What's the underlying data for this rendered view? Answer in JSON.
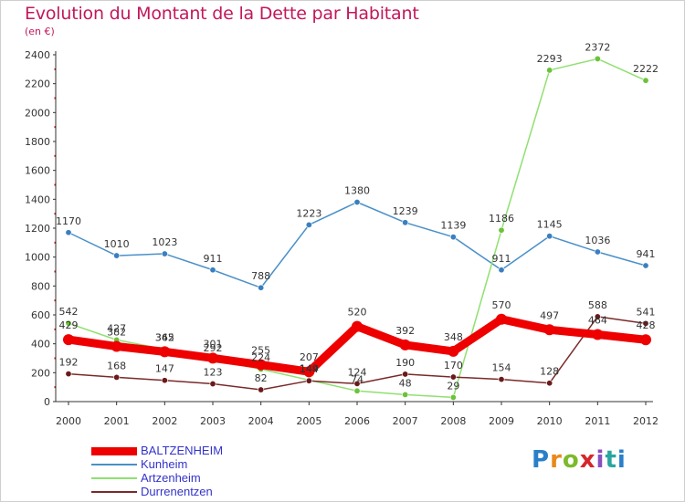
{
  "title": "Evolution du Montant de la Dette par Habitant",
  "unit_label": "(en €)",
  "logo_text": "Proxiti",
  "colors": {
    "title": "#c2185b",
    "axis": "#333333",
    "y_tick_marks": "#cc0000",
    "legend_text": "#3333cc"
  },
  "chart_data": {
    "type": "line",
    "title": "Evolution du Montant de la Dette par Habitant",
    "ylabel": "(en €)",
    "xlabel": "",
    "x": [
      "2000",
      "2001",
      "2002",
      "2003",
      "2004",
      "2005",
      "2006",
      "2007",
      "2008",
      "2009",
      "2010",
      "2011",
      "2012"
    ],
    "ylim": [
      0,
      2400
    ],
    "yticks": [
      0,
      200,
      400,
      600,
      800,
      1000,
      1200,
      1400,
      1600,
      1800,
      2000,
      2200,
      2400
    ],
    "grid": false,
    "legend_position": "bottom-left",
    "series": [
      {
        "name": "BALTZENHEIM",
        "color": "#ee0000",
        "dot": "#ee0000",
        "values": [
          429,
          382,
          345,
          301,
          255,
          207,
          520,
          392,
          348,
          570,
          497,
          464,
          428
        ]
      },
      {
        "name": "Kunheim",
        "color": "#4a90c8",
        "dot": "#3a7fbf",
        "values": [
          1170,
          1010,
          1023,
          911,
          788,
          1223,
          1380,
          1239,
          1139,
          911,
          1145,
          1036,
          941
        ]
      },
      {
        "name": "Artzenheim",
        "color": "#90e070",
        "dot": "#6cc23a",
        "values": [
          542,
          427,
          362,
          292,
          224,
          149,
          74,
          48,
          29,
          1186,
          2293,
          2372,
          2222
        ]
      },
      {
        "name": "Durrenentzen",
        "color": "#7a2a2a",
        "dot": "#6b1a1a",
        "values": [
          192,
          168,
          147,
          123,
          82,
          144,
          124,
          190,
          170,
          154,
          128,
          588,
          541
        ]
      }
    ]
  }
}
